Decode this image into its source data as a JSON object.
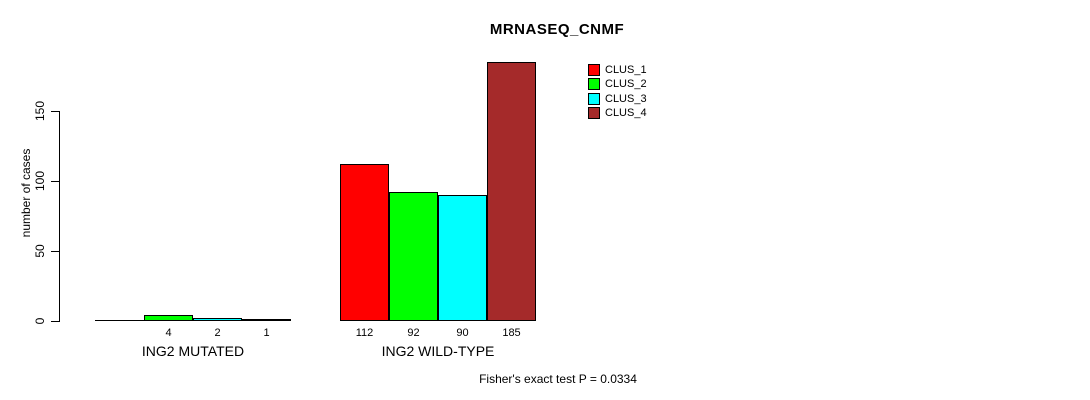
{
  "chart_data": {
    "type": "bar",
    "title": "MRNASEQ_CNMF",
    "ylabel": "number of cases",
    "ylim": [
      0,
      150
    ],
    "yticks": [
      0,
      50,
      100,
      150
    ],
    "grid": false,
    "legend_position": "top-right",
    "categories": [
      "ING2 MUTATED",
      "ING2 WILD-TYPE"
    ],
    "series": [
      {
        "name": "CLUS_1",
        "color": "#ff0000",
        "values": [
          0,
          112
        ]
      },
      {
        "name": "CLUS_2",
        "color": "#00ff00",
        "values": [
          4,
          92
        ]
      },
      {
        "name": "CLUS_3",
        "color": "#00ffff",
        "values": [
          2,
          90
        ]
      },
      {
        "name": "CLUS_4",
        "color": "#a52a2a",
        "values": [
          1,
          185
        ]
      }
    ],
    "bar_value_labels": [
      [
        "",
        "4",
        "2",
        "1"
      ],
      [
        "112",
        "92",
        "90",
        "185"
      ]
    ],
    "annotation": "Fisher's exact test P = 0.0334",
    "axis_color": "#000000",
    "background_color": "#ffffff"
  }
}
